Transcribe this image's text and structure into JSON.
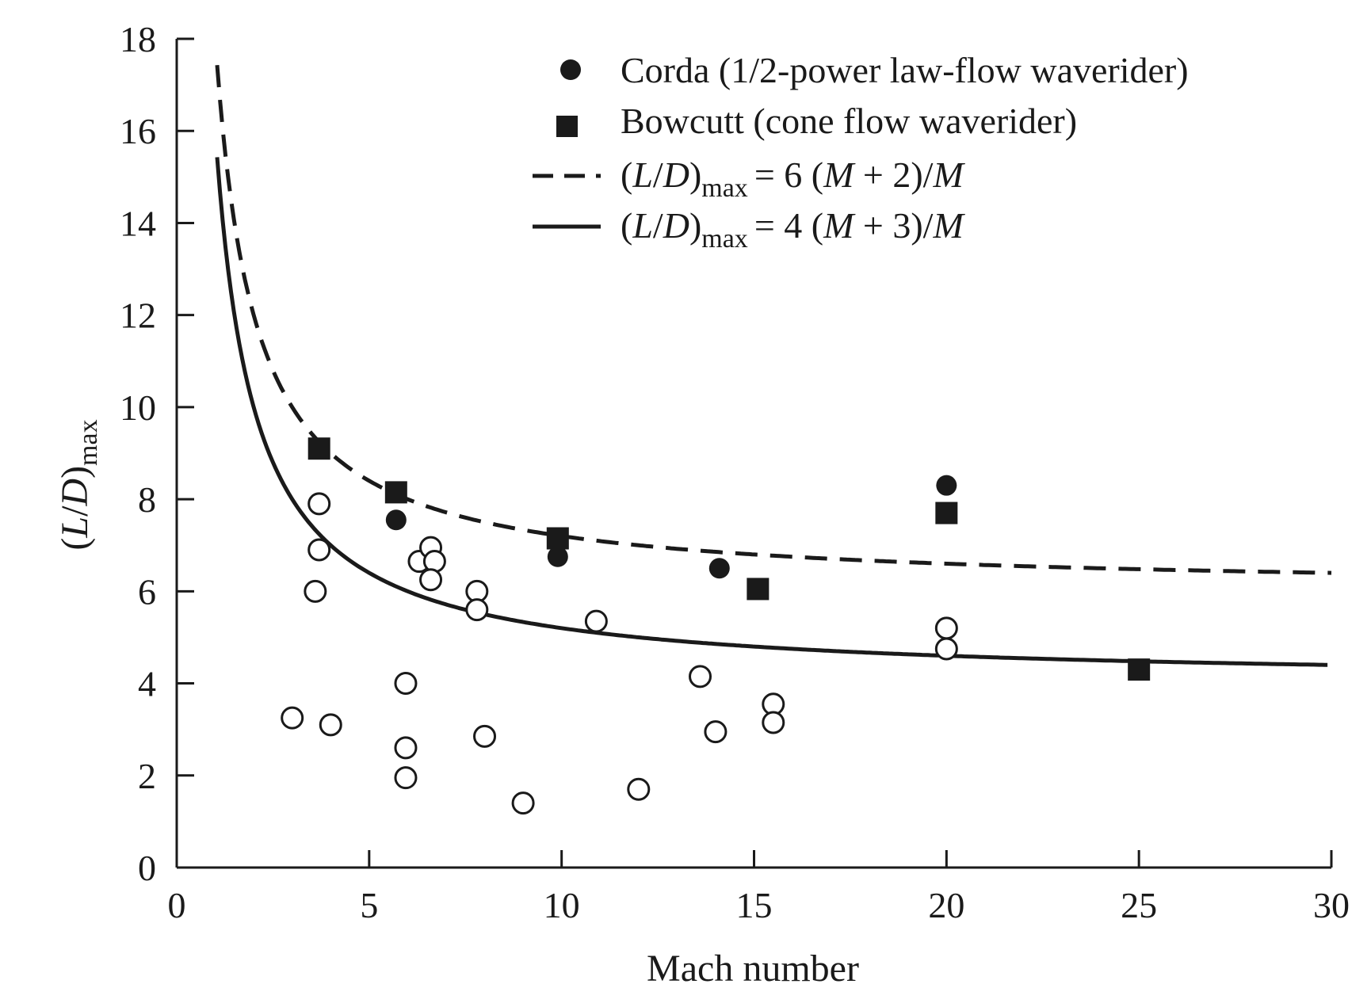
{
  "chart_data": {
    "type": "scatter",
    "xlabel": "Mach number",
    "ylabel": {
      "prefix": "(",
      "L": "L",
      "slash": "/",
      "D": "D",
      "suffix": ")",
      "sub": "max"
    },
    "xlim": [
      0,
      30
    ],
    "ylim": [
      0,
      18
    ],
    "x_ticks": [
      0,
      5,
      10,
      15,
      20,
      25,
      30
    ],
    "y_ticks": [
      0,
      2,
      4,
      6,
      8,
      10,
      12,
      14,
      16,
      18
    ],
    "grid": false,
    "legend_placement": "top-right",
    "series": [
      {
        "name": "Corda (1/2-power law-flow waverider)",
        "marker": "filled-circle",
        "points": [
          [
            5.7,
            7.55
          ],
          [
            9.9,
            6.75
          ],
          [
            14.1,
            6.5
          ],
          [
            20,
            8.3
          ]
        ]
      },
      {
        "name": "Bowcutt (cone flow waverider)",
        "marker": "filled-square",
        "points": [
          [
            3.7,
            9.1
          ],
          [
            5.7,
            8.15
          ],
          [
            9.9,
            7.15
          ],
          [
            15.1,
            6.05
          ],
          [
            20,
            7.7
          ],
          [
            25,
            4.3
          ]
        ]
      },
      {
        "name": "",
        "marker": "open-circle",
        "points": [
          [
            3.7,
            7.9
          ],
          [
            3.7,
            6.9
          ],
          [
            3.6,
            6.0
          ],
          [
            3.0,
            3.25
          ],
          [
            4.0,
            3.1
          ],
          [
            5.95,
            4.0
          ],
          [
            5.95,
            2.6
          ],
          [
            5.95,
            1.95
          ],
          [
            6.3,
            6.65
          ],
          [
            6.6,
            6.95
          ],
          [
            6.7,
            6.65
          ],
          [
            6.6,
            6.25
          ],
          [
            7.8,
            6.0
          ],
          [
            7.8,
            5.6
          ],
          [
            8.0,
            2.85
          ],
          [
            9.0,
            1.4
          ],
          [
            10.9,
            5.35
          ],
          [
            12.0,
            1.7
          ],
          [
            13.6,
            4.15
          ],
          [
            14.0,
            2.95
          ],
          [
            15.5,
            3.55
          ],
          [
            15.5,
            3.15
          ],
          [
            20,
            5.2
          ],
          [
            20,
            4.75
          ]
        ]
      }
    ],
    "curves": [
      {
        "style": "dashed",
        "legend": {
          "lhs_sub": "max",
          "rhs": "= 6 (",
          "var": "M",
          "rhs2": " + 2)/",
          "var2": "M"
        },
        "a": 6,
        "b": 2,
        "x_start": 1.05,
        "x_end": 30
      },
      {
        "style": "solid",
        "legend": {
          "lhs_sub": "max",
          "rhs": "= 4 (",
          "var": "M",
          "rhs2": " + 3)/",
          "var2": "M"
        },
        "a": 4,
        "b": 3,
        "x_start": 1.05,
        "x_end": 29.9
      }
    ]
  }
}
